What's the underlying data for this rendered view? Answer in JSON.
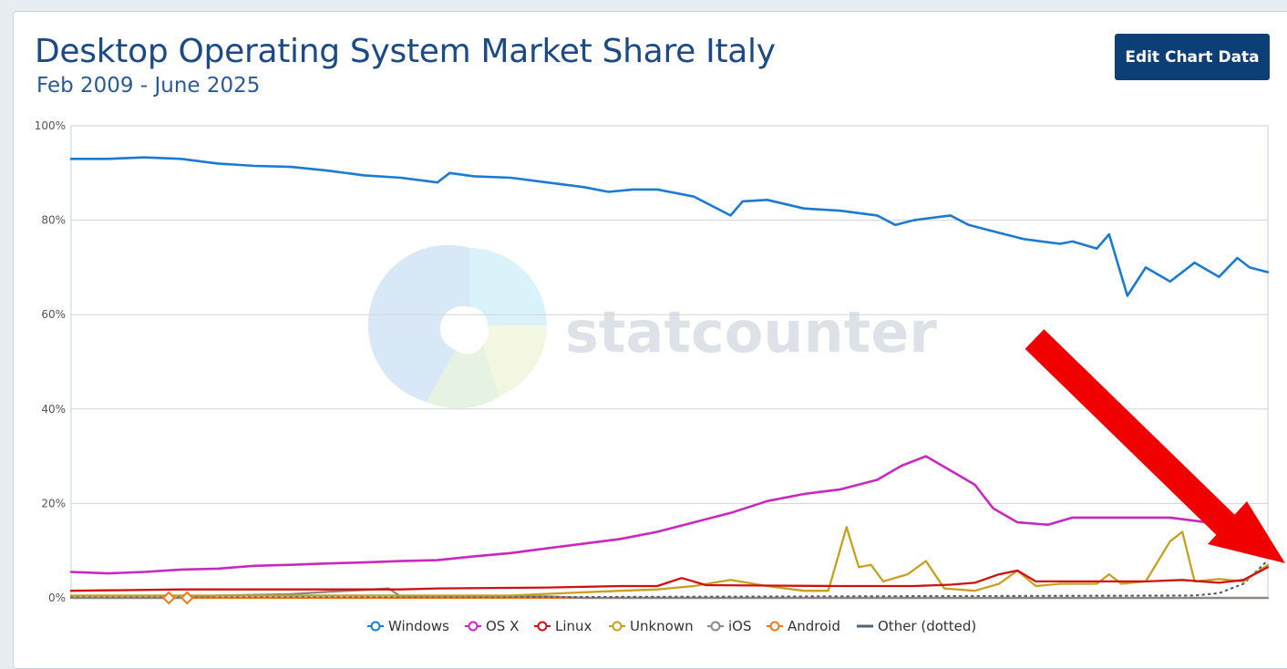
{
  "header": {
    "title": "Desktop Operating System Market Share Italy",
    "subtitle": "Feb 2009 - June 2025",
    "edit_button_label": "Edit Chart Data"
  },
  "watermark": {
    "text": "statcounter"
  },
  "colors": {
    "windows": "#1a7bd0",
    "osx": "#c828c0",
    "linux": "#d01010",
    "unknown": "#c8a020",
    "ios": "#888888",
    "android": "#f07820",
    "other": "#556070",
    "arrow": "#f00000",
    "title": "#1c4a84",
    "button_bg": "#0d3f77"
  },
  "chart_data": {
    "type": "line",
    "ylim": [
      0,
      100
    ],
    "y_ticks": [
      "0%",
      "20%",
      "40%",
      "60%",
      "80%",
      "100%"
    ],
    "y_tick_values": [
      0,
      20,
      40,
      60,
      80,
      100
    ],
    "x_start": "2009-02",
    "x_end": "2025-06",
    "grid": true,
    "legend_position": "bottom",
    "legend": [
      "Windows",
      "OS X",
      "Linux",
      "Unknown",
      "iOS",
      "Android",
      "Other (dotted)"
    ],
    "series": [
      {
        "name": "Windows",
        "points": [
          [
            "2009-02",
            93
          ],
          [
            "2009-08",
            93
          ],
          [
            "2010-02",
            93.3
          ],
          [
            "2010-08",
            93
          ],
          [
            "2011-02",
            92
          ],
          [
            "2011-08",
            91.5
          ],
          [
            "2012-02",
            91.3
          ],
          [
            "2012-08",
            90.5
          ],
          [
            "2013-02",
            89.5
          ],
          [
            "2013-08",
            89
          ],
          [
            "2014-02",
            88
          ],
          [
            "2014-04",
            90
          ],
          [
            "2014-08",
            89.3
          ],
          [
            "2015-02",
            89
          ],
          [
            "2015-08",
            88
          ],
          [
            "2016-02",
            87
          ],
          [
            "2016-06",
            86
          ],
          [
            "2016-10",
            86.5
          ],
          [
            "2017-02",
            86.5
          ],
          [
            "2017-08",
            85
          ],
          [
            "2018-02",
            81
          ],
          [
            "2018-04",
            84
          ],
          [
            "2018-08",
            84.3
          ],
          [
            "2019-02",
            82.5
          ],
          [
            "2019-08",
            82
          ],
          [
            "2020-02",
            81
          ],
          [
            "2020-05",
            79
          ],
          [
            "2020-08",
            80
          ],
          [
            "2021-02",
            81
          ],
          [
            "2021-05",
            79
          ],
          [
            "2021-08",
            78
          ],
          [
            "2022-02",
            76
          ],
          [
            "2022-08",
            75
          ],
          [
            "2022-10",
            75.5
          ],
          [
            "2023-02",
            74
          ],
          [
            "2023-04",
            77
          ],
          [
            "2023-07",
            64
          ],
          [
            "2023-10",
            70
          ],
          [
            "2024-02",
            67
          ],
          [
            "2024-06",
            71
          ],
          [
            "2024-10",
            68
          ],
          [
            "2025-01",
            72
          ],
          [
            "2025-03",
            70
          ],
          [
            "2025-06",
            69
          ]
        ]
      },
      {
        "name": "OS X",
        "points": [
          [
            "2009-02",
            5.5
          ],
          [
            "2009-08",
            5.2
          ],
          [
            "2010-02",
            5.5
          ],
          [
            "2010-08",
            6
          ],
          [
            "2011-02",
            6.2
          ],
          [
            "2011-08",
            6.8
          ],
          [
            "2012-02",
            7
          ],
          [
            "2012-08",
            7.3
          ],
          [
            "2013-02",
            7.5
          ],
          [
            "2013-08",
            7.8
          ],
          [
            "2014-02",
            8
          ],
          [
            "2014-08",
            8.8
          ],
          [
            "2015-02",
            9.5
          ],
          [
            "2015-08",
            10.5
          ],
          [
            "2016-02",
            11.5
          ],
          [
            "2016-08",
            12.5
          ],
          [
            "2017-02",
            14
          ],
          [
            "2017-08",
            16
          ],
          [
            "2018-02",
            18
          ],
          [
            "2018-08",
            20.5
          ],
          [
            "2019-02",
            22
          ],
          [
            "2019-08",
            23
          ],
          [
            "2020-02",
            25
          ],
          [
            "2020-06",
            28
          ],
          [
            "2020-10",
            30
          ],
          [
            "2021-02",
            27
          ],
          [
            "2021-06",
            24
          ],
          [
            "2021-09",
            19
          ],
          [
            "2022-01",
            16
          ],
          [
            "2022-06",
            15.5
          ],
          [
            "2022-10",
            17
          ],
          [
            "2023-04",
            17
          ],
          [
            "2023-10",
            17
          ],
          [
            "2024-02",
            17
          ],
          [
            "2024-08",
            16
          ],
          [
            "2025-01",
            16
          ],
          [
            "2025-06",
            12
          ]
        ]
      },
      {
        "name": "Linux",
        "points": [
          [
            "2009-02",
            1.5
          ],
          [
            "2010-08",
            1.8
          ],
          [
            "2012-08",
            1.8
          ],
          [
            "2013-08",
            1.8
          ],
          [
            "2014-02",
            2
          ],
          [
            "2015-08",
            2.2
          ],
          [
            "2016-08",
            2.5
          ],
          [
            "2017-02",
            2.5
          ],
          [
            "2017-06",
            4.2
          ],
          [
            "2017-10",
            2.7
          ],
          [
            "2018-08",
            2.6
          ],
          [
            "2019-08",
            2.5
          ],
          [
            "2020-08",
            2.5
          ],
          [
            "2021-02",
            2.8
          ],
          [
            "2021-06",
            3.2
          ],
          [
            "2021-10",
            5
          ],
          [
            "2022-01",
            5.8
          ],
          [
            "2022-04",
            3.5
          ],
          [
            "2022-10",
            3.5
          ],
          [
            "2023-04",
            3.5
          ],
          [
            "2023-10",
            3.5
          ],
          [
            "2024-04",
            3.8
          ],
          [
            "2024-10",
            3.2
          ],
          [
            "2025-02",
            3.8
          ],
          [
            "2025-06",
            6.5
          ]
        ]
      },
      {
        "name": "Unknown",
        "points": [
          [
            "2009-02",
            0.5
          ],
          [
            "2015-02",
            0.5
          ],
          [
            "2016-02",
            1.2
          ],
          [
            "2016-08",
            1.5
          ],
          [
            "2017-02",
            1.8
          ],
          [
            "2017-08",
            2.5
          ],
          [
            "2018-02",
            3.8
          ],
          [
            "2018-08",
            2.5
          ],
          [
            "2019-02",
            1.5
          ],
          [
            "2019-06",
            1.5
          ],
          [
            "2019-09",
            15
          ],
          [
            "2019-11",
            6.5
          ],
          [
            "2020-01",
            7
          ],
          [
            "2020-03",
            3.5
          ],
          [
            "2020-07",
            5
          ],
          [
            "2020-10",
            7.8
          ],
          [
            "2021-01",
            2
          ],
          [
            "2021-06",
            1.5
          ],
          [
            "2021-10",
            3
          ],
          [
            "2022-01",
            5.8
          ],
          [
            "2022-04",
            2.5
          ],
          [
            "2022-08",
            3
          ],
          [
            "2023-02",
            3
          ],
          [
            "2023-04",
            5
          ],
          [
            "2023-06",
            3
          ],
          [
            "2023-10",
            3.5
          ],
          [
            "2024-02",
            12
          ],
          [
            "2024-04",
            14
          ],
          [
            "2024-06",
            3.5
          ],
          [
            "2024-10",
            4
          ],
          [
            "2025-02",
            3.5
          ],
          [
            "2025-06",
            7
          ]
        ]
      },
      {
        "name": "iOS",
        "points": [
          [
            "2009-02",
            0
          ],
          [
            "2010-08",
            0
          ],
          [
            "2011-02",
            0.5
          ],
          [
            "2012-02",
            0.8
          ],
          [
            "2012-08",
            1.3
          ],
          [
            "2013-02",
            1.7
          ],
          [
            "2013-06",
            2
          ],
          [
            "2013-08",
            0.3
          ],
          [
            "2015-08",
            0.3
          ],
          [
            "2016-02",
            0
          ],
          [
            "2025-06",
            0
          ]
        ]
      },
      {
        "name": "Android",
        "points": [
          [
            "2009-02",
            0
          ],
          [
            "2025-06",
            0
          ]
        ]
      },
      {
        "name": "Other (dotted)",
        "points": [
          [
            "2009-02",
            0.3
          ],
          [
            "2016-02",
            0.2
          ],
          [
            "2024-06",
            0.5
          ],
          [
            "2024-10",
            1
          ],
          [
            "2025-02",
            3
          ],
          [
            "2025-06",
            8
          ]
        ]
      }
    ]
  }
}
